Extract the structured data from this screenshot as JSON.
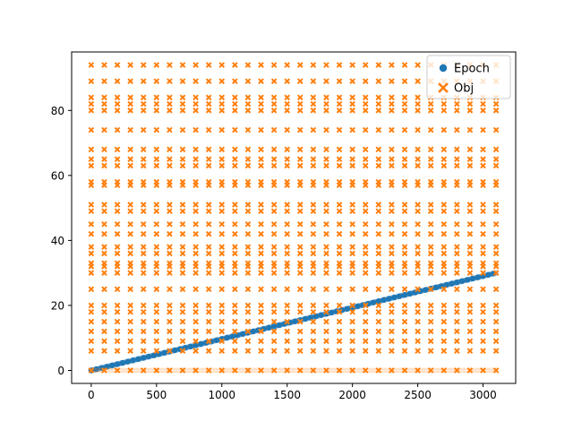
{
  "chart_data": {
    "type": "scatter",
    "title": "",
    "xlabel": "",
    "ylabel": "",
    "xlim": [
      -150,
      3250
    ],
    "ylim": [
      -4,
      98
    ],
    "x_ticks": [
      0,
      500,
      1000,
      1500,
      2000,
      2500,
      3000
    ],
    "y_ticks": [
      0,
      20,
      40,
      60,
      80
    ],
    "x_tick_labels": [
      "0",
      "500",
      "1000",
      "1500",
      "2000",
      "2500",
      "3000"
    ],
    "y_tick_labels": [
      "0",
      "20",
      "40",
      "60",
      "80"
    ],
    "grid": false,
    "legend": {
      "position": "top-right"
    },
    "x_range": [
      0,
      3100
    ],
    "series": [
      {
        "name": "Epoch",
        "marker": "circle",
        "color": "#1f77b4",
        "x_start": 0,
        "x_end": 3100,
        "y_start": 0,
        "y_end": 30,
        "note": "one point per step; value rises from 0 to 30, drawn with dense light-blue band"
      },
      {
        "name": "Obj",
        "marker": "x",
        "color": "#ff7f0e",
        "columns_every": 100,
        "levels": [
          94,
          89,
          84,
          82,
          80,
          74,
          68,
          65,
          63,
          58,
          57,
          51,
          49,
          45,
          42,
          38,
          36,
          33,
          32,
          30,
          25,
          20,
          18,
          15,
          12,
          9,
          6,
          0
        ]
      }
    ]
  }
}
